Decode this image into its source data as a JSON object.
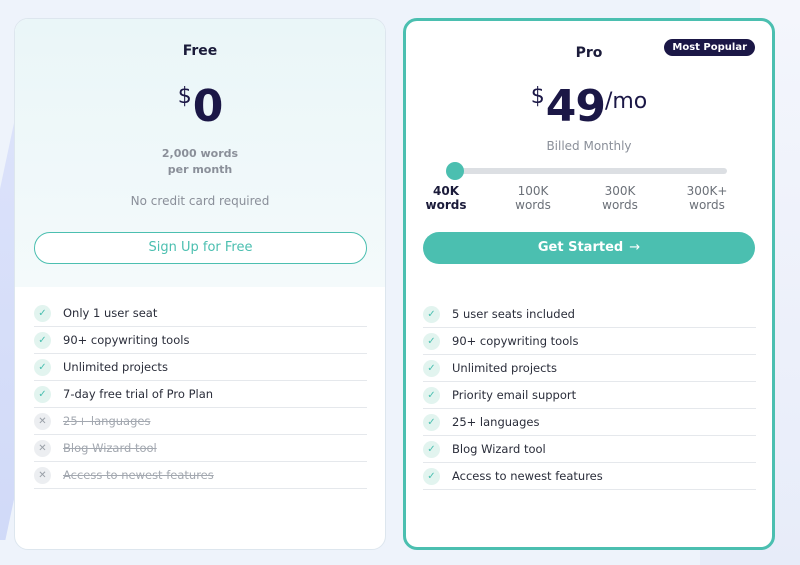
{
  "free": {
    "name": "Free",
    "currency": "$",
    "amount": "0",
    "words_line1": "2,000 words",
    "words_line2": "per month",
    "note": "No credit card required",
    "cta": "Sign Up for Free",
    "features": [
      {
        "label": "Only 1 user seat",
        "included": true
      },
      {
        "label": "90+ copywriting tools",
        "included": true
      },
      {
        "label": "Unlimited projects",
        "included": true
      },
      {
        "label": "7-day free trial of Pro Plan",
        "included": true
      },
      {
        "label": "25+ languages",
        "included": false
      },
      {
        "label": "Blog Wizard tool",
        "included": false
      },
      {
        "label": "Access to newest features",
        "included": false
      }
    ]
  },
  "pro": {
    "name": "Pro",
    "badge": "Most Popular",
    "currency": "$",
    "amount": "49",
    "period": "/mo",
    "billing": "Billed Monthly",
    "slider_value_fraction": 0,
    "tiers": [
      {
        "line1": "40K",
        "line2": "words",
        "active": true
      },
      {
        "line1": "100K",
        "line2": "words",
        "active": false
      },
      {
        "line1": "300K",
        "line2": "words",
        "active": false
      },
      {
        "line1": "300K+",
        "line2": "words",
        "active": false
      }
    ],
    "cta": "Get Started",
    "cta_arrow": "→",
    "features": [
      {
        "label": "5 user seats included",
        "included": true
      },
      {
        "label": "90+ copywriting tools",
        "included": true
      },
      {
        "label": "Unlimited projects",
        "included": true
      },
      {
        "label": "Priority email support",
        "included": true
      },
      {
        "label": "25+ languages",
        "included": true
      },
      {
        "label": "Blog Wizard tool",
        "included": true
      },
      {
        "label": "Access to newest features",
        "included": true
      }
    ]
  },
  "icons": {
    "included": "check-icon",
    "excluded": "x-icon"
  },
  "colors": {
    "accent": "#4bbfb0",
    "dark": "#1b1746",
    "muted": "#8a8f99"
  }
}
